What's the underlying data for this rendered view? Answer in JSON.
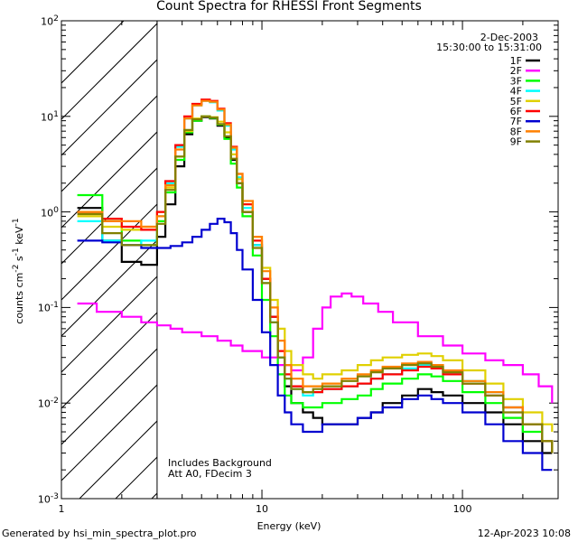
{
  "chart_data": {
    "type": "line",
    "title": "Count Spectra for RHESSI Front Segments",
    "xlabel": "Energy (keV)",
    "ylabel_html": "counts cm<sup>-2</sup> s<sup>-1</sup> keV<sup>-1</sup>",
    "xscale": "log",
    "yscale": "log",
    "xlim": [
      1,
      300
    ],
    "ylim": [
      0.001,
      100
    ],
    "x_tick_labels": [
      "1",
      "10",
      "100"
    ],
    "y_tick_labels": [
      "10<sup>-3</sup>",
      "10<sup>-2</sup>",
      "10<sup>-1</sup>",
      "10<sup>0</sup>",
      "10<sup>1</sup>",
      "10<sup>2</sup>"
    ],
    "date": "2-Dec-2003",
    "time_range": "15:30:00 to 15:31:00",
    "annotations": [
      "Includes Background",
      "Att A0, FDecim 3"
    ],
    "excluded_region_below_keV": 3,
    "series": [
      {
        "name": "1F",
        "color": "#000000",
        "e": [
          1.2,
          1.6,
          2.0,
          2.5,
          3.0,
          3.3,
          3.7,
          4.1,
          4.5,
          5.0,
          5.5,
          6.0,
          6.5,
          7.0,
          7.5,
          8.0,
          9.0,
          10.0,
          11.0,
          12.0,
          13.0,
          14.0,
          16.0,
          18.0,
          20.0,
          25.0,
          30.0,
          35.0,
          40.0,
          50.0,
          60.0,
          70.0,
          80.0,
          100.0,
          130.0,
          160.0,
          200.0,
          250.0,
          280.0
        ],
        "y": [
          1.1,
          0.5,
          0.3,
          0.28,
          0.55,
          1.2,
          3.0,
          6.5,
          9.0,
          9.8,
          9.5,
          8.0,
          6.0,
          3.5,
          2.0,
          1.0,
          0.45,
          0.2,
          0.08,
          0.03,
          0.015,
          0.01,
          0.008,
          0.007,
          0.006,
          0.006,
          0.007,
          0.008,
          0.01,
          0.012,
          0.014,
          0.013,
          0.012,
          0.01,
          0.008,
          0.006,
          0.004,
          0.003,
          0.003
        ]
      },
      {
        "name": "2F",
        "color": "#ff00ff",
        "e": [
          1.2,
          1.5,
          2.0,
          2.5,
          3.0,
          3.5,
          4.0,
          5.0,
          6.0,
          7.0,
          8.0,
          10.0,
          12.0,
          14.0,
          16.0,
          18.0,
          20.0,
          22.0,
          25.0,
          28.0,
          32.0,
          38.0,
          45.0,
          60.0,
          80.0,
          100.0,
          130.0,
          160.0,
          200.0,
          240.0,
          280.0
        ],
        "y": [
          0.11,
          0.09,
          0.08,
          0.07,
          0.065,
          0.06,
          0.055,
          0.05,
          0.045,
          0.04,
          0.035,
          0.03,
          0.025,
          0.022,
          0.03,
          0.06,
          0.1,
          0.13,
          0.14,
          0.13,
          0.11,
          0.09,
          0.07,
          0.05,
          0.04,
          0.033,
          0.028,
          0.025,
          0.02,
          0.015,
          0.01
        ]
      },
      {
        "name": "3F",
        "color": "#00ff00",
        "e": [
          1.2,
          1.6,
          2.0,
          2.5,
          3.0,
          3.3,
          3.7,
          4.1,
          4.5,
          5.0,
          5.5,
          6.0,
          6.5,
          7.0,
          7.5,
          8.0,
          9.0,
          10.0,
          11.0,
          12.0,
          13.0,
          14.0,
          16.0,
          18.0,
          20.0,
          25.0,
          30.0,
          35.0,
          40.0,
          50.0,
          60.0,
          70.0,
          80.0,
          100.0,
          130.0,
          160.0,
          200.0,
          250.0,
          280.0
        ],
        "y": [
          1.5,
          0.8,
          0.5,
          0.45,
          0.8,
          1.6,
          3.5,
          6.8,
          9.0,
          10.0,
          9.6,
          8.2,
          5.8,
          3.2,
          1.8,
          0.9,
          0.35,
          0.12,
          0.05,
          0.02,
          0.012,
          0.01,
          0.009,
          0.009,
          0.01,
          0.011,
          0.012,
          0.014,
          0.016,
          0.018,
          0.02,
          0.019,
          0.017,
          0.013,
          0.01,
          0.007,
          0.005,
          0.004,
          0.003
        ]
      },
      {
        "name": "4F",
        "color": "#00ffff",
        "e": [
          1.2,
          1.6,
          2.0,
          2.5,
          3.0,
          3.3,
          3.7,
          4.1,
          4.5,
          5.0,
          5.5,
          6.0,
          6.5,
          7.0,
          7.5,
          8.0,
          9.0,
          10.0,
          11.0,
          12.0,
          13.0,
          14.0,
          16.0,
          18.0,
          20.0,
          25.0,
          30.0,
          35.0,
          40.0,
          50.0,
          60.0,
          70.0,
          80.0,
          100.0,
          130.0,
          160.0,
          200.0,
          250.0,
          280.0
        ],
        "y": [
          0.8,
          0.5,
          0.45,
          0.5,
          0.9,
          2.0,
          4.8,
          9.5,
          13.0,
          14.5,
          14.0,
          11.5,
          8.0,
          4.5,
          2.3,
          1.1,
          0.45,
          0.18,
          0.07,
          0.03,
          0.018,
          0.014,
          0.012,
          0.013,
          0.014,
          0.015,
          0.016,
          0.018,
          0.02,
          0.023,
          0.025,
          0.024,
          0.021,
          0.017,
          0.013,
          0.009,
          0.006,
          0.004,
          0.003
        ]
      },
      {
        "name": "5F",
        "color": "#e0d000",
        "e": [
          1.2,
          1.6,
          2.0,
          2.5,
          3.0,
          3.3,
          3.7,
          4.1,
          4.5,
          5.0,
          5.5,
          6.0,
          6.5,
          7.0,
          7.5,
          8.0,
          9.0,
          10.0,
          11.0,
          12.0,
          13.0,
          14.0,
          16.0,
          18.0,
          20.0,
          25.0,
          30.0,
          35.0,
          40.0,
          50.0,
          60.0,
          70.0,
          80.0,
          100.0,
          130.0,
          160.0,
          200.0,
          250.0,
          280.0
        ],
        "y": [
          0.9,
          0.7,
          0.65,
          0.7,
          1.0,
          1.8,
          3.8,
          7.0,
          9.5,
          10.0,
          9.8,
          8.8,
          6.8,
          4.0,
          2.2,
          1.2,
          0.55,
          0.26,
          0.12,
          0.06,
          0.035,
          0.025,
          0.02,
          0.018,
          0.02,
          0.022,
          0.025,
          0.028,
          0.03,
          0.032,
          0.033,
          0.031,
          0.028,
          0.022,
          0.016,
          0.011,
          0.008,
          0.006,
          0.005
        ]
      },
      {
        "name": "6F",
        "color": "#ff0000",
        "e": [
          1.2,
          1.6,
          2.0,
          2.5,
          3.0,
          3.3,
          3.7,
          4.1,
          4.5,
          5.0,
          5.5,
          6.0,
          6.5,
          7.0,
          7.5,
          8.0,
          9.0,
          10.0,
          11.0,
          12.0,
          13.0,
          14.0,
          16.0,
          18.0,
          20.0,
          25.0,
          30.0,
          35.0,
          40.0,
          50.0,
          60.0,
          70.0,
          80.0,
          100.0,
          130.0,
          160.0,
          200.0,
          250.0,
          280.0
        ],
        "y": [
          1.0,
          0.85,
          0.7,
          0.65,
          1.0,
          2.1,
          5.0,
          10.0,
          13.5,
          15.0,
          14.5,
          12.0,
          8.5,
          4.8,
          2.5,
          1.2,
          0.5,
          0.2,
          0.08,
          0.035,
          0.02,
          0.015,
          0.013,
          0.013,
          0.014,
          0.015,
          0.016,
          0.018,
          0.02,
          0.022,
          0.024,
          0.023,
          0.02,
          0.016,
          0.012,
          0.009,
          0.006,
          0.004,
          0.003
        ]
      },
      {
        "name": "7F",
        "color": "#0000d0",
        "e": [
          1.2,
          1.6,
          2.0,
          2.5,
          3.0,
          3.5,
          4.0,
          4.5,
          5.0,
          5.5,
          6.0,
          6.5,
          7.0,
          7.5,
          8.0,
          9.0,
          10.0,
          11.0,
          12.0,
          13.0,
          14.0,
          16.0,
          18.0,
          20.0,
          25.0,
          30.0,
          35.0,
          40.0,
          50.0,
          60.0,
          70.0,
          80.0,
          100.0,
          130.0,
          160.0,
          200.0,
          250.0,
          280.0
        ],
        "y": [
          0.5,
          0.48,
          0.45,
          0.42,
          0.42,
          0.44,
          0.48,
          0.55,
          0.65,
          0.75,
          0.85,
          0.78,
          0.6,
          0.4,
          0.25,
          0.12,
          0.055,
          0.025,
          0.012,
          0.008,
          0.006,
          0.005,
          0.005,
          0.006,
          0.006,
          0.007,
          0.008,
          0.009,
          0.011,
          0.012,
          0.011,
          0.01,
          0.008,
          0.006,
          0.004,
          0.003,
          0.002,
          0.002
        ]
      },
      {
        "name": "8F",
        "color": "#ff8000",
        "e": [
          1.2,
          1.6,
          2.0,
          2.5,
          3.0,
          3.3,
          3.7,
          4.1,
          4.5,
          5.0,
          5.5,
          6.0,
          6.5,
          7.0,
          7.5,
          8.0,
          9.0,
          10.0,
          11.0,
          12.0,
          13.0,
          14.0,
          16.0,
          18.0,
          20.0,
          25.0,
          30.0,
          35.0,
          40.0,
          50.0,
          60.0,
          70.0,
          80.0,
          100.0,
          130.0,
          160.0,
          200.0,
          250.0,
          280.0
        ],
        "y": [
          1.0,
          0.8,
          0.8,
          0.7,
          0.9,
          1.9,
          4.5,
          9.5,
          13.0,
          14.5,
          14.2,
          11.8,
          8.2,
          4.7,
          2.5,
          1.3,
          0.55,
          0.24,
          0.1,
          0.045,
          0.025,
          0.018,
          0.015,
          0.015,
          0.016,
          0.018,
          0.02,
          0.022,
          0.024,
          0.026,
          0.027,
          0.025,
          0.022,
          0.017,
          0.013,
          0.009,
          0.006,
          0.004,
          0.003
        ]
      },
      {
        "name": "9F",
        "color": "#808000",
        "e": [
          1.2,
          1.6,
          2.0,
          2.5,
          3.0,
          3.3,
          3.7,
          4.1,
          4.5,
          5.0,
          5.5,
          6.0,
          6.5,
          7.0,
          7.5,
          8.0,
          9.0,
          10.0,
          11.0,
          12.0,
          13.0,
          14.0,
          16.0,
          18.0,
          20.0,
          25.0,
          30.0,
          35.0,
          40.0,
          50.0,
          60.0,
          70.0,
          80.0,
          100.0,
          130.0,
          160.0,
          200.0,
          250.0,
          280.0
        ],
        "y": [
          0.95,
          0.6,
          0.45,
          0.45,
          0.75,
          1.7,
          3.8,
          7.2,
          9.3,
          10.0,
          9.7,
          8.3,
          6.2,
          3.6,
          2.0,
          1.0,
          0.42,
          0.18,
          0.07,
          0.03,
          0.018,
          0.014,
          0.013,
          0.014,
          0.015,
          0.017,
          0.019,
          0.021,
          0.023,
          0.025,
          0.026,
          0.024,
          0.021,
          0.016,
          0.012,
          0.008,
          0.006,
          0.004,
          0.003
        ]
      }
    ]
  },
  "footer": {
    "generator": "Generated by hsi_min_spectra_plot.pro",
    "timestamp": "12-Apr-2023 10:08"
  }
}
